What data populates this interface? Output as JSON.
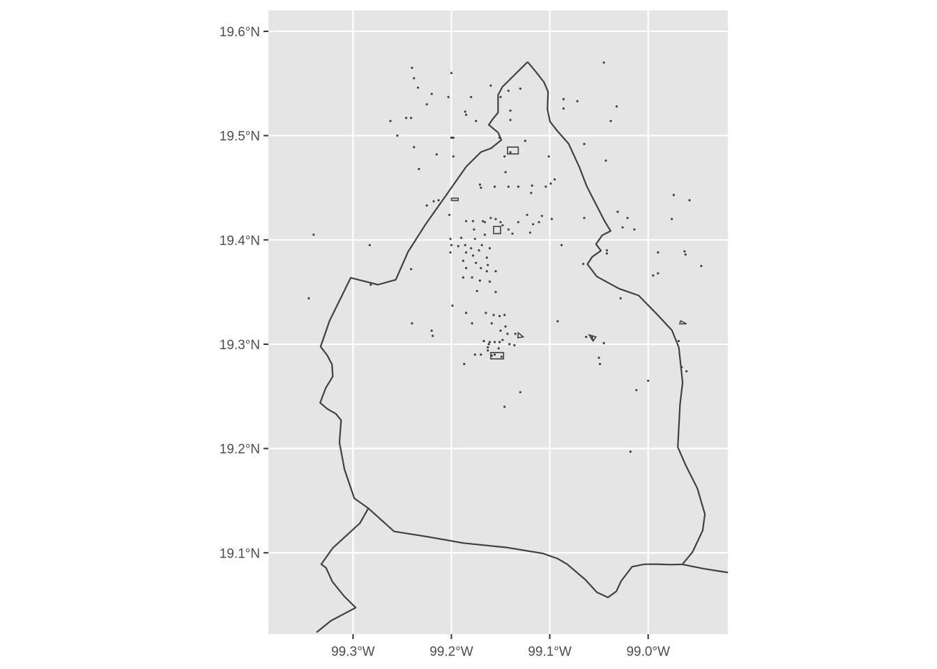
{
  "map": {
    "background_color": "#e5e5e5",
    "grid_color": "#ffffff",
    "feature_color": "#404040",
    "label_color": "#4d4d4d",
    "x_range": [
      -99.386,
      -98.919
    ],
    "y_range": [
      19.022,
      19.62
    ],
    "lat_ticks": [
      {
        "value": 19.6,
        "label": "19.6°N"
      },
      {
        "value": 19.5,
        "label": "19.5°N"
      },
      {
        "value": 19.4,
        "label": "19.4°N"
      },
      {
        "value": 19.3,
        "label": "19.3°N"
      },
      {
        "value": 19.2,
        "label": "19.2°N"
      },
      {
        "value": 19.1,
        "label": "19.1°N"
      }
    ],
    "lon_ticks": [
      {
        "value": -99.3,
        "label": "99.3°W"
      },
      {
        "value": -99.2,
        "label": "99.2°W"
      },
      {
        "value": -99.1,
        "label": "99.1°W"
      },
      {
        "value": -99.0,
        "label": "99.0°W"
      }
    ],
    "outline": [
      [
        -99.1225,
        19.5707
      ],
      [
        -99.1137,
        19.5607
      ],
      [
        -99.1059,
        19.5512
      ],
      [
        -99.1017,
        19.542
      ],
      [
        -99.1024,
        19.5254
      ],
      [
        -99.0997,
        19.5133
      ],
      [
        -99.0925,
        19.5047
      ],
      [
        -99.0809,
        19.4923
      ],
      [
        -99.07,
        19.4699
      ],
      [
        -99.0622,
        19.451
      ],
      [
        -99.0519,
        19.432
      ],
      [
        -99.0442,
        19.4179
      ],
      [
        -99.0381,
        19.4085
      ],
      [
        -99.0466,
        19.4045
      ],
      [
        -99.053,
        19.3959
      ],
      [
        -99.048,
        19.3897
      ],
      [
        -99.0568,
        19.3838
      ],
      [
        -99.0617,
        19.3767
      ],
      [
        -99.0522,
        19.3649
      ],
      [
        -99.0296,
        19.3533
      ],
      [
        -99.0097,
        19.3467
      ],
      [
        -98.9905,
        19.3282
      ],
      [
        -98.9758,
        19.3133
      ],
      [
        -98.9688,
        19.2969
      ],
      [
        -98.965,
        19.2632
      ],
      [
        -98.9676,
        19.2423
      ],
      [
        -98.9699,
        19.2013
      ],
      [
        -98.962,
        19.1843
      ],
      [
        -98.95,
        19.1617
      ],
      [
        -98.9423,
        19.137
      ],
      [
        -98.9446,
        19.1214
      ],
      [
        -98.9548,
        19.1009
      ],
      [
        -98.9653,
        19.0889
      ],
      [
        -98.9778,
        19.0887
      ],
      [
        -98.9914,
        19.0891
      ],
      [
        -99.0037,
        19.089
      ],
      [
        -99.0163,
        19.0867
      ],
      [
        -99.0275,
        19.0729
      ],
      [
        -99.0323,
        19.0631
      ],
      [
        -99.0409,
        19.0572
      ],
      [
        -99.0521,
        19.0621
      ],
      [
        -99.0637,
        19.0741
      ],
      [
        -99.0823,
        19.089
      ],
      [
        -99.0916,
        19.0942
      ],
      [
        -99.1069,
        19.0994
      ],
      [
        -99.1438,
        19.1051
      ],
      [
        -99.1878,
        19.1093
      ],
      [
        -99.2243,
        19.1154
      ],
      [
        -99.2583,
        19.1205
      ],
      [
        -99.2844,
        19.1427
      ],
      [
        -99.2987,
        19.1522
      ],
      [
        -99.3087,
        19.18
      ],
      [
        -99.3138,
        19.2058
      ],
      [
        -99.3121,
        19.2271
      ],
      [
        -99.3174,
        19.2333
      ],
      [
        -99.3262,
        19.238
      ],
      [
        -99.3334,
        19.2439
      ],
      [
        -99.3278,
        19.2578
      ],
      [
        -99.3206,
        19.2691
      ],
      [
        -99.3214,
        19.2806
      ],
      [
        -99.3262,
        19.2893
      ],
      [
        -99.3329,
        19.2977
      ],
      [
        -99.3238,
        19.3226
      ],
      [
        -99.3132,
        19.3428
      ],
      [
        -99.3024,
        19.3637
      ],
      [
        -99.2747,
        19.3571
      ],
      [
        -99.2565,
        19.3618
      ],
      [
        -99.2441,
        19.3885
      ],
      [
        -99.2259,
        19.4154
      ],
      [
        -99.2046,
        19.4439
      ],
      [
        -99.1849,
        19.4703
      ],
      [
        -99.1699,
        19.4843
      ],
      [
        -99.1598,
        19.4878
      ],
      [
        -99.1492,
        19.4958
      ],
      [
        -99.1525,
        19.5029
      ],
      [
        -99.1621,
        19.5104
      ],
      [
        -99.1582,
        19.5156
      ],
      [
        -99.1526,
        19.5221
      ],
      [
        -99.1526,
        19.5389
      ],
      [
        -99.1482,
        19.5468
      ],
      [
        -99.1413,
        19.5531
      ],
      [
        -99.1225,
        19.5707
      ]
    ],
    "border_line_1": [
      [
        -99.3371,
        19.0237
      ],
      [
        -99.3227,
        19.0347
      ],
      [
        -99.2973,
        19.0474
      ],
      [
        -99.3093,
        19.0587
      ],
      [
        -99.321,
        19.0724
      ],
      [
        -99.3275,
        19.0857
      ],
      [
        -99.3323,
        19.0891
      ],
      [
        -99.3206,
        19.1046
      ],
      [
        -99.293,
        19.1284
      ],
      [
        -99.2844,
        19.1427
      ]
    ],
    "border_line_2": [
      [
        -98.9653,
        19.0889
      ],
      [
        -98.9425,
        19.0846
      ],
      [
        -98.919,
        19.0811
      ]
    ],
    "polygons": [
      [
        [
          -99.2,
          19.44
        ],
        [
          -99.193,
          19.44
        ],
        [
          -99.193,
          19.4378
        ],
        [
          -99.2,
          19.4378
        ]
      ],
      [
        [
          -99.143,
          19.489
        ],
        [
          -99.132,
          19.489
        ],
        [
          -99.132,
          19.4825
        ],
        [
          -99.143,
          19.4825
        ]
      ],
      [
        [
          -99.157,
          19.413
        ],
        [
          -99.15,
          19.413
        ],
        [
          -99.15,
          19.406
        ],
        [
          -99.157,
          19.406
        ]
      ],
      [
        [
          -99.132,
          19.311
        ],
        [
          -99.127,
          19.307
        ],
        [
          -99.1325,
          19.3062
        ]
      ],
      [
        [
          -98.967,
          19.3225
        ],
        [
          -98.961,
          19.3195
        ],
        [
          -98.968,
          19.3195
        ]
      ],
      [
        [
          -99.16,
          19.292
        ],
        [
          -99.147,
          19.292
        ],
        [
          -99.147,
          19.286
        ],
        [
          -99.16,
          19.286
        ]
      ],
      [
        [
          -99.06,
          19.309
        ],
        [
          -99.053,
          19.307
        ],
        [
          -99.056,
          19.303
        ]
      ]
    ],
    "points": [
      [
        -99.045,
        19.57
      ],
      [
        -99.24,
        19.565
      ],
      [
        -99.2,
        19.56
      ],
      [
        -99.238,
        19.555
      ],
      [
        -99.234,
        19.546
      ],
      [
        -99.16,
        19.548
      ],
      [
        -99.142,
        19.543
      ],
      [
        -99.13,
        19.545
      ],
      [
        -99.22,
        19.54
      ],
      [
        -99.203,
        19.537
      ],
      [
        -99.18,
        19.537
      ],
      [
        -99.15,
        19.537
      ],
      [
        -99.086,
        19.535
      ],
      [
        -99.072,
        19.533
      ],
      [
        -99.225,
        19.53
      ],
      [
        -99.032,
        19.528
      ],
      [
        -99.086,
        19.526
      ],
      [
        -99.186,
        19.523
      ],
      [
        -99.14,
        19.524
      ],
      [
        -99.185,
        19.52
      ],
      [
        -99.246,
        19.517
      ],
      [
        -99.241,
        19.517
      ],
      [
        -99.175,
        19.514
      ],
      [
        -99.14,
        19.515
      ],
      [
        -99.262,
        19.514
      ],
      [
        -99.038,
        19.514
      ],
      [
        -99.255,
        19.5
      ],
      [
        -99.2,
        19.498
      ],
      [
        -99.125,
        19.495
      ],
      [
        -99.151,
        19.498
      ],
      [
        -99.065,
        19.492
      ],
      [
        -99.238,
        19.489
      ],
      [
        -99.215,
        19.482
      ],
      [
        -99.146,
        19.48
      ],
      [
        -99.14,
        19.484
      ],
      [
        -99.101,
        19.48
      ],
      [
        -99.198,
        19.48
      ],
      [
        -99.198,
        19.498
      ],
      [
        -99.043,
        19.476
      ],
      [
        -99.233,
        19.468
      ],
      [
        -99.145,
        19.465
      ],
      [
        -99.095,
        19.458
      ],
      [
        -99.099,
        19.454
      ],
      [
        -99.104,
        19.451
      ],
      [
        -99.118,
        19.452
      ],
      [
        -99.142,
        19.451
      ],
      [
        -99.132,
        19.451
      ],
      [
        -99.171,
        19.453
      ],
      [
        -99.156,
        19.451
      ],
      [
        -99.17,
        19.45
      ],
      [
        -99.119,
        19.445
      ],
      [
        -98.974,
        19.443
      ],
      [
        -98.958,
        19.438
      ],
      [
        -99.218,
        19.437
      ],
      [
        -99.213,
        19.438
      ],
      [
        -99.225,
        19.433
      ],
      [
        -99.202,
        19.424
      ],
      [
        -99.031,
        19.427
      ],
      [
        -99.16,
        19.421
      ],
      [
        -99.123,
        19.424
      ],
      [
        -99.108,
        19.423
      ],
      [
        -99.021,
        19.421
      ],
      [
        -99.166,
        19.417
      ],
      [
        -99.155,
        19.42
      ],
      [
        -99.098,
        19.42
      ],
      [
        -99.065,
        19.421
      ],
      [
        -98.976,
        19.42
      ],
      [
        -99.185,
        19.418
      ],
      [
        -99.178,
        19.418
      ],
      [
        -99.168,
        19.418
      ],
      [
        -99.15,
        19.417
      ],
      [
        -99.132,
        19.417
      ],
      [
        -99.117,
        19.415
      ],
      [
        -99.111,
        19.417
      ],
      [
        -99.148,
        19.414
      ],
      [
        -99.142,
        19.41
      ],
      [
        -99.014,
        19.41
      ],
      [
        -99.026,
        19.412
      ],
      [
        -99.177,
        19.41
      ],
      [
        -99.12,
        19.407
      ],
      [
        -99.166,
        19.405
      ],
      [
        -99.138,
        19.406
      ],
      [
        -99.34,
        19.405
      ],
      [
        -99.201,
        19.401
      ],
      [
        -99.19,
        19.402
      ],
      [
        -99.176,
        19.401
      ],
      [
        -99.283,
        19.395
      ],
      [
        -99.2,
        19.395
      ],
      [
        -99.193,
        19.394
      ],
      [
        -99.186,
        19.395
      ],
      [
        -99.169,
        19.395
      ],
      [
        -99.18,
        19.392
      ],
      [
        -99.161,
        19.392
      ],
      [
        -99.088,
        19.395
      ],
      [
        -99.172,
        19.39
      ],
      [
        -99.042,
        19.39
      ],
      [
        -99.201,
        19.388
      ],
      [
        -99.185,
        19.388
      ],
      [
        -99.042,
        19.387
      ],
      [
        -98.99,
        19.388
      ],
      [
        -98.963,
        19.389
      ],
      [
        -98.962,
        19.386
      ],
      [
        -99.178,
        19.385
      ],
      [
        -99.164,
        19.383
      ],
      [
        -99.188,
        19.38
      ],
      [
        -99.175,
        19.378
      ],
      [
        -99.163,
        19.376
      ],
      [
        -99.066,
        19.377
      ],
      [
        -98.946,
        19.375
      ],
      [
        -99.185,
        19.373
      ],
      [
        -99.17,
        19.373
      ],
      [
        -99.241,
        19.372
      ],
      [
        -99.164,
        19.37
      ],
      [
        -99.155,
        19.37
      ],
      [
        -98.995,
        19.366
      ],
      [
        -98.99,
        19.368
      ],
      [
        -99.188,
        19.364
      ],
      [
        -99.179,
        19.364
      ],
      [
        -99.171,
        19.361
      ],
      [
        -99.161,
        19.36
      ],
      [
        -99.282,
        19.357
      ],
      [
        -99.174,
        19.351
      ],
      [
        -99.155,
        19.35
      ],
      [
        -99.345,
        19.344
      ],
      [
        -99.028,
        19.344
      ],
      [
        -99.199,
        19.337
      ],
      [
        -99.185,
        19.33
      ],
      [
        -99.165,
        19.33
      ],
      [
        -99.157,
        19.328
      ],
      [
        -99.146,
        19.328
      ],
      [
        -99.151,
        19.327
      ],
      [
        -99.092,
        19.322
      ],
      [
        -99.24,
        19.32
      ],
      [
        -99.179,
        19.32
      ],
      [
        -99.159,
        19.32
      ],
      [
        -99.145,
        19.317
      ],
      [
        -99.22,
        19.313
      ],
      [
        -99.15,
        19.313
      ],
      [
        -99.143,
        19.31
      ],
      [
        -99.135,
        19.31
      ],
      [
        -99.219,
        19.308
      ],
      [
        -99.063,
        19.307
      ],
      [
        -99.057,
        19.307
      ],
      [
        -99.057,
        19.305
      ],
      [
        -99.148,
        19.304
      ],
      [
        -99.167,
        19.303
      ],
      [
        -99.161,
        19.302
      ],
      [
        -99.156,
        19.302
      ],
      [
        -99.151,
        19.302
      ],
      [
        -99.162,
        19.3
      ],
      [
        -99.141,
        19.3
      ],
      [
        -99.136,
        19.299
      ],
      [
        -99.045,
        19.301
      ],
      [
        -98.969,
        19.303
      ],
      [
        -99.163,
        19.297
      ],
      [
        -99.163,
        19.294
      ],
      [
        -99.152,
        19.296
      ],
      [
        -99.156,
        19.29
      ],
      [
        -99.149,
        19.288
      ],
      [
        -99.159,
        19.289
      ],
      [
        -99.176,
        19.29
      ],
      [
        -99.17,
        19.29
      ],
      [
        -99.05,
        19.287
      ],
      [
        -99.049,
        19.281
      ],
      [
        -99.187,
        19.281
      ],
      [
        -98.966,
        19.278
      ],
      [
        -98.961,
        19.274
      ],
      [
        -99.0,
        19.265
      ],
      [
        -99.012,
        19.256
      ],
      [
        -99.13,
        19.254
      ],
      [
        -99.146,
        19.24
      ],
      [
        -99.018,
        19.197
      ]
    ]
  }
}
